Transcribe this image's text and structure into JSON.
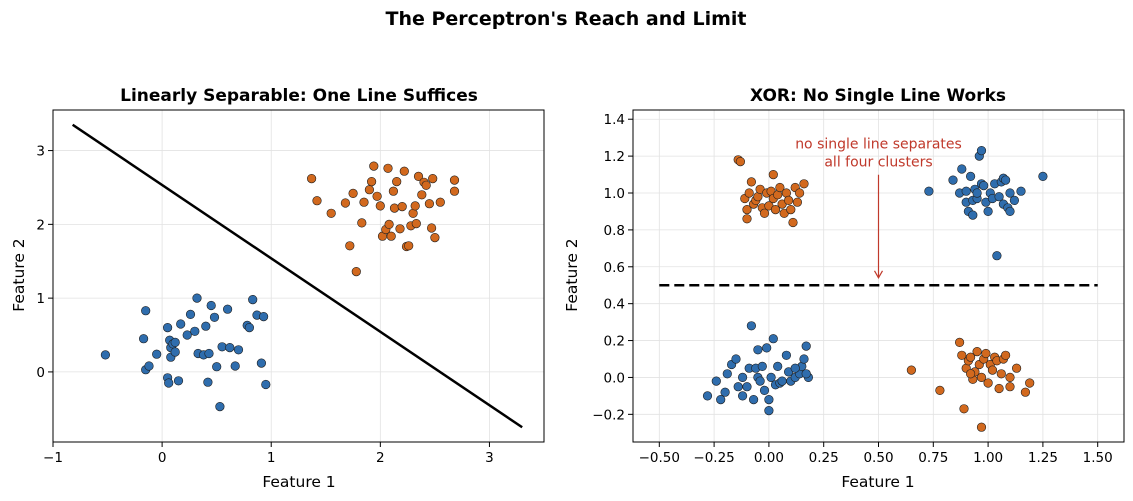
{
  "figure": {
    "suptitle": "The Perceptron's Reach and Limit"
  },
  "colors": {
    "class0": "#2f6dad",
    "class1": "#d2691e",
    "annotation": "#c0392b",
    "grid": "#e2e2e2"
  },
  "chart_data": [
    {
      "type": "scatter",
      "title": "Linearly Separable: One Line Suffices",
      "xlabel": "Feature 1",
      "ylabel": "Feature 2",
      "xlim": [
        -1.0,
        3.5
      ],
      "ylim": [
        -0.95,
        3.55
      ],
      "xticks": [
        -1,
        0,
        1,
        2,
        3
      ],
      "yticks": [
        0,
        1,
        2,
        3
      ],
      "grid": true,
      "series": [
        {
          "class": "class0",
          "points": [
            [
              -0.52,
              0.23
            ],
            [
              -0.15,
              0.83
            ],
            [
              -0.17,
              0.45
            ],
            [
              -0.15,
              0.03
            ],
            [
              -0.12,
              0.08
            ],
            [
              -0.05,
              0.24
            ],
            [
              0.05,
              0.6
            ],
            [
              0.05,
              -0.08
            ],
            [
              0.06,
              -0.15
            ],
            [
              0.07,
              0.43
            ],
            [
              0.08,
              0.33
            ],
            [
              0.08,
              0.2
            ],
            [
              0.1,
              0.38
            ],
            [
              0.12,
              0.4
            ],
            [
              0.12,
              0.27
            ],
            [
              0.15,
              -0.12
            ],
            [
              0.17,
              0.65
            ],
            [
              0.23,
              0.5
            ],
            [
              0.26,
              0.78
            ],
            [
              0.3,
              0.55
            ],
            [
              0.32,
              1.0
            ],
            [
              0.33,
              0.25
            ],
            [
              0.38,
              0.23
            ],
            [
              0.4,
              0.62
            ],
            [
              0.42,
              -0.14
            ],
            [
              0.43,
              0.25
            ],
            [
              0.45,
              0.9
            ],
            [
              0.48,
              0.74
            ],
            [
              0.5,
              0.07
            ],
            [
              0.53,
              -0.47
            ],
            [
              0.55,
              0.34
            ],
            [
              0.6,
              0.85
            ],
            [
              0.62,
              0.33
            ],
            [
              0.67,
              0.08
            ],
            [
              0.7,
              0.3
            ],
            [
              0.78,
              0.63
            ],
            [
              0.8,
              0.6
            ],
            [
              0.83,
              0.98
            ],
            [
              0.87,
              0.77
            ],
            [
              0.91,
              0.12
            ],
            [
              0.93,
              0.75
            ],
            [
              0.95,
              -0.17
            ]
          ]
        },
        {
          "class": "class1",
          "points": [
            [
              1.37,
              2.62
            ],
            [
              1.42,
              2.32
            ],
            [
              1.55,
              2.15
            ],
            [
              1.68,
              2.29
            ],
            [
              1.72,
              1.71
            ],
            [
              1.75,
              2.42
            ],
            [
              1.78,
              1.36
            ],
            [
              1.83,
              2.02
            ],
            [
              1.85,
              2.3
            ],
            [
              1.9,
              2.47
            ],
            [
              1.92,
              2.58
            ],
            [
              1.94,
              2.79
            ],
            [
              1.97,
              2.38
            ],
            [
              2.0,
              2.25
            ],
            [
              2.02,
              1.84
            ],
            [
              2.05,
              1.93
            ],
            [
              2.07,
              2.76
            ],
            [
              2.08,
              2.0
            ],
            [
              2.1,
              1.84
            ],
            [
              2.12,
              2.45
            ],
            [
              2.13,
              2.22
            ],
            [
              2.15,
              2.58
            ],
            [
              2.18,
              1.94
            ],
            [
              2.2,
              2.24
            ],
            [
              2.22,
              2.72
            ],
            [
              2.24,
              1.7
            ],
            [
              2.26,
              1.71
            ],
            [
              2.28,
              1.98
            ],
            [
              2.3,
              2.15
            ],
            [
              2.32,
              2.25
            ],
            [
              2.33,
              2.01
            ],
            [
              2.35,
              2.65
            ],
            [
              2.38,
              2.4
            ],
            [
              2.4,
              2.57
            ],
            [
              2.42,
              2.53
            ],
            [
              2.45,
              2.28
            ],
            [
              2.47,
              1.95
            ],
            [
              2.48,
              2.62
            ],
            [
              2.5,
              1.82
            ],
            [
              2.55,
              2.3
            ],
            [
              2.68,
              2.45
            ],
            [
              2.68,
              2.6
            ]
          ]
        }
      ],
      "decision_line": {
        "style": "solid",
        "from": [
          -0.82,
          3.35
        ],
        "to": [
          3.3,
          -0.75
        ]
      }
    },
    {
      "type": "scatter",
      "title": "XOR: No Single Line Works",
      "xlabel": "Feature 1",
      "ylabel": "Feature 2",
      "xlim": [
        -0.62,
        1.62
      ],
      "ylim": [
        -0.35,
        1.45
      ],
      "xticks": [
        -0.5,
        -0.25,
        0.0,
        0.25,
        0.5,
        0.75,
        1.0,
        1.25,
        1.5
      ],
      "xtick_labels": [
        "−0.50",
        "−0.25",
        "0.00",
        "0.25",
        "0.50",
        "0.75",
        "1.00",
        "1.25",
        "1.50"
      ],
      "yticks": [
        -0.2,
        0.0,
        0.2,
        0.4,
        0.6,
        0.8,
        1.0,
        1.2,
        1.4
      ],
      "ytick_labels": [
        "−0.2",
        "0.0",
        "0.2",
        "0.4",
        "0.6",
        "0.8",
        "1.0",
        "1.2",
        "1.4"
      ],
      "grid": true,
      "series": [
        {
          "class": "class0",
          "points": [
            [
              -0.28,
              -0.1
            ],
            [
              -0.24,
              -0.02
            ],
            [
              -0.22,
              -0.12
            ],
            [
              -0.2,
              -0.08
            ],
            [
              -0.19,
              0.02
            ],
            [
              -0.17,
              0.07
            ],
            [
              -0.15,
              0.1
            ],
            [
              -0.14,
              -0.05
            ],
            [
              -0.12,
              0.0
            ],
            [
              -0.12,
              -0.1
            ],
            [
              -0.1,
              -0.05
            ],
            [
              -0.09,
              0.05
            ],
            [
              -0.08,
              0.28
            ],
            [
              -0.07,
              -0.12
            ],
            [
              -0.06,
              0.05
            ],
            [
              -0.05,
              0.15
            ],
            [
              -0.05,
              0.0
            ],
            [
              -0.04,
              -0.02
            ],
            [
              -0.03,
              0.06
            ],
            [
              -0.02,
              -0.07
            ],
            [
              -0.01,
              0.16
            ],
            [
              0.0,
              -0.12
            ],
            [
              0.0,
              -0.18
            ],
            [
              0.01,
              0.0
            ],
            [
              0.02,
              0.21
            ],
            [
              0.03,
              -0.04
            ],
            [
              0.04,
              0.06
            ],
            [
              0.05,
              -0.03
            ],
            [
              0.06,
              -0.02
            ],
            [
              0.08,
              0.12
            ],
            [
              0.09,
              0.03
            ],
            [
              0.1,
              -0.02
            ],
            [
              0.12,
              0.0
            ],
            [
              0.14,
              0.02
            ],
            [
              0.15,
              0.06
            ],
            [
              0.16,
              0.1
            ],
            [
              0.17,
              0.17
            ],
            [
              0.18,
              0.0
            ],
            [
              0.12,
              0.05
            ],
            [
              0.17,
              0.02
            ],
            [
              0.84,
              1.07
            ],
            [
              0.87,
              1.0
            ],
            [
              0.88,
              1.13
            ],
            [
              0.9,
              0.95
            ],
            [
              0.91,
              0.9
            ],
            [
              0.92,
              1.09
            ],
            [
              0.93,
              0.96
            ],
            [
              0.93,
              0.88
            ],
            [
              0.94,
              1.02
            ],
            [
              0.95,
              0.97
            ],
            [
              0.96,
              1.2
            ],
            [
              0.97,
              1.05
            ],
            [
              0.97,
              1.23
            ],
            [
              0.98,
              1.04
            ],
            [
              0.99,
              0.95
            ],
            [
              1.0,
              0.9
            ],
            [
              1.01,
              1.0
            ],
            [
              1.02,
              0.97
            ],
            [
              1.03,
              1.05
            ],
            [
              1.04,
              0.66
            ],
            [
              1.05,
              0.98
            ],
            [
              1.06,
              1.06
            ],
            [
              1.07,
              1.08
            ],
            [
              1.07,
              0.94
            ],
            [
              1.08,
              1.07
            ],
            [
              1.09,
              0.92
            ],
            [
              1.1,
              0.9
            ],
            [
              1.1,
              1.0
            ],
            [
              1.12,
              0.96
            ],
            [
              1.15,
              1.01
            ],
            [
              1.25,
              1.09
            ],
            [
              0.73,
              1.01
            ],
            [
              0.9,
              1.01
            ],
            [
              0.95,
              1.0
            ]
          ]
        },
        {
          "class": "class1",
          "points": [
            [
              -0.14,
              1.18
            ],
            [
              -0.13,
              1.17
            ],
            [
              -0.11,
              0.97
            ],
            [
              -0.1,
              0.91
            ],
            [
              -0.1,
              0.86
            ],
            [
              -0.09,
              1.0
            ],
            [
              -0.08,
              1.06
            ],
            [
              -0.07,
              0.94
            ],
            [
              -0.06,
              0.96
            ],
            [
              -0.05,
              0.98
            ],
            [
              -0.04,
              1.02
            ],
            [
              -0.03,
              0.92
            ],
            [
              -0.02,
              0.89
            ],
            [
              -0.01,
              1.0
            ],
            [
              0.0,
              0.93
            ],
            [
              0.01,
              1.01
            ],
            [
              0.02,
              0.97
            ],
            [
              0.02,
              1.1
            ],
            [
              0.03,
              0.91
            ],
            [
              0.04,
              0.99
            ],
            [
              0.05,
              1.03
            ],
            [
              0.06,
              0.94
            ],
            [
              0.07,
              0.89
            ],
            [
              0.08,
              1.0
            ],
            [
              0.09,
              0.96
            ],
            [
              0.1,
              0.91
            ],
            [
              0.11,
              0.84
            ],
            [
              0.12,
              1.03
            ],
            [
              0.13,
              0.95
            ],
            [
              0.14,
              1.0
            ],
            [
              0.16,
              1.05
            ],
            [
              0.65,
              0.04
            ],
            [
              0.78,
              -0.07
            ],
            [
              0.87,
              0.19
            ],
            [
              0.88,
              0.12
            ],
            [
              0.89,
              -0.17
            ],
            [
              0.9,
              0.05
            ],
            [
              0.91,
              0.09
            ],
            [
              0.92,
              0.11
            ],
            [
              0.93,
              -0.01
            ],
            [
              0.94,
              0.03
            ],
            [
              0.95,
              0.14
            ],
            [
              0.96,
              0.07
            ],
            [
              0.97,
              0.0
            ],
            [
              0.98,
              0.1
            ],
            [
              0.99,
              0.13
            ],
            [
              1.0,
              -0.03
            ],
            [
              1.01,
              0.07
            ],
            [
              1.02,
              0.04
            ],
            [
              1.03,
              0.11
            ],
            [
              1.04,
              0.09
            ],
            [
              1.05,
              -0.06
            ],
            [
              1.06,
              0.02
            ],
            [
              1.07,
              0.1
            ],
            [
              1.08,
              0.12
            ],
            [
              1.1,
              0.0
            ],
            [
              1.1,
              -0.05
            ],
            [
              1.13,
              0.05
            ],
            [
              1.17,
              -0.08
            ],
            [
              1.19,
              -0.03
            ],
            [
              0.97,
              -0.27
            ],
            [
              0.92,
              0.02
            ]
          ]
        }
      ],
      "decision_line": {
        "style": "dashed",
        "from": [
          -0.5,
          0.5
        ],
        "to": [
          1.5,
          0.5
        ]
      },
      "annotation": {
        "lines": [
          "no single line separates",
          "all four clusters"
        ],
        "text_at": [
          0.5,
          1.24
        ],
        "arrow_to": [
          0.5,
          0.54
        ]
      }
    }
  ]
}
